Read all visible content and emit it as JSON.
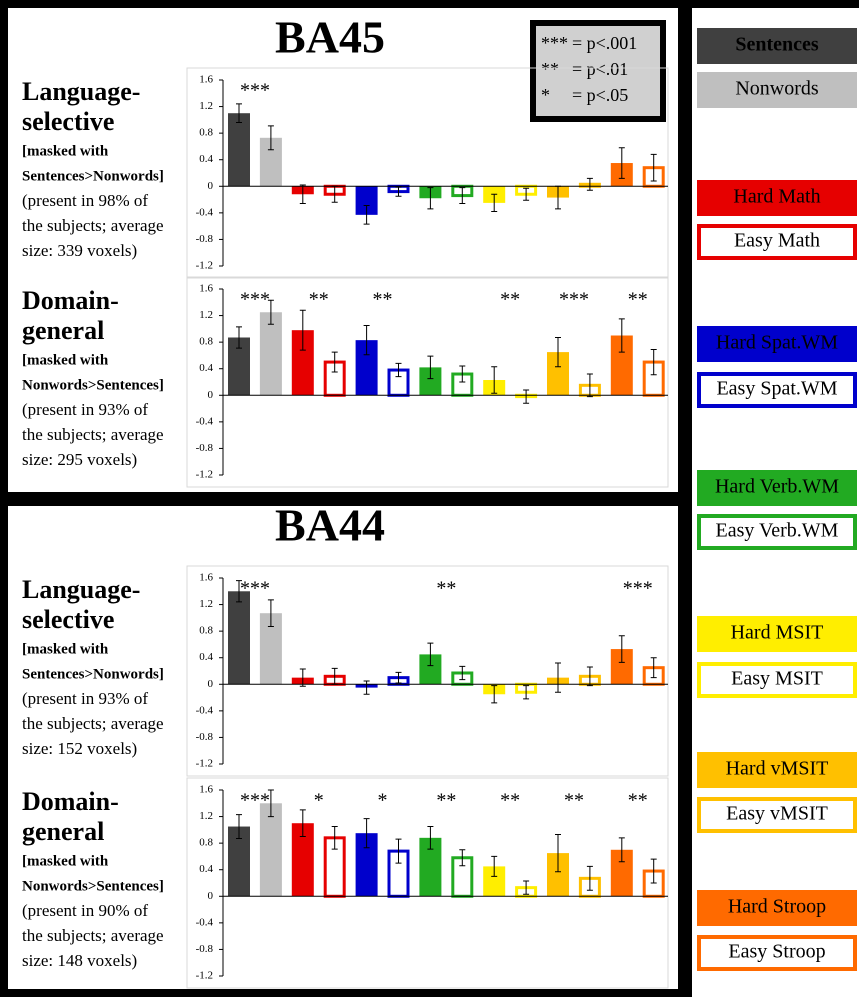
{
  "sections": [
    {
      "title": "BA45"
    },
    {
      "title": "BA44"
    }
  ],
  "key": [
    {
      "symbol": "***",
      "label": "= p<.001"
    },
    {
      "symbol": "**",
      "label": "= p<.01"
    },
    {
      "symbol": "*",
      "label": "= p<.05"
    }
  ],
  "legend": [
    {
      "name": "Sentences",
      "color": "#404040",
      "filled": true
    },
    {
      "name": "Nonwords",
      "color": "#bfbfbf",
      "filled": true
    },
    {
      "name": "Hard Math",
      "color": "#e60000",
      "filled": true
    },
    {
      "name": "Easy Math",
      "color": "#e60000",
      "filled": false
    },
    {
      "name": "Hard Spat.WM",
      "color": "#0000cc",
      "filled": true
    },
    {
      "name": "Easy Spat.WM",
      "color": "#0000cc",
      "filled": false
    },
    {
      "name": "Hard Verb.WM",
      "color": "#22aa22",
      "filled": true
    },
    {
      "name": "Easy Verb.WM",
      "color": "#22aa22",
      "filled": false
    },
    {
      "name": "Hard MSIT",
      "color": "#ffee00",
      "filled": true
    },
    {
      "name": "Easy MSIT",
      "color": "#ffee00",
      "filled": false
    },
    {
      "name": "Hard vMSIT",
      "color": "#ffc000",
      "filled": true
    },
    {
      "name": "Easy vMSIT",
      "color": "#ffc000",
      "filled": false
    },
    {
      "name": "Hard Stroop",
      "color": "#ff6a00",
      "filled": true
    },
    {
      "name": "Easy Stroop",
      "color": "#ff6a00",
      "filled": false
    }
  ],
  "chart_data": [
    {
      "type": "bar",
      "title": [
        "Language-",
        "selective"
      ],
      "subtitle": [
        "[masked with",
        "Sentences>Nonwords]"
      ],
      "note": [
        "(present in 98% of",
        "the subjects; average",
        "size: 339 voxels)"
      ],
      "values": [
        1.1,
        0.73,
        -0.12,
        -0.12,
        -0.43,
        -0.08,
        -0.18,
        -0.14,
        -0.25,
        -0.12,
        -0.17,
        0.03,
        0.35,
        0.28
      ],
      "errors": [
        0.14,
        0.18,
        0.14,
        0.12,
        0.14,
        0.07,
        0.16,
        0.12,
        0.13,
        0.09,
        0.17,
        0.09,
        0.23,
        0.2
      ],
      "significance": [
        "***",
        null,
        null,
        null,
        null,
        null,
        null
      ],
      "ylim": [
        -1.2,
        1.6
      ],
      "yticks": [
        -1.2,
        -0.8,
        -0.4,
        0,
        0.4,
        0.8,
        1.2,
        1.6
      ]
    },
    {
      "type": "bar",
      "title": [
        "Domain-",
        "general"
      ],
      "subtitle": [
        "[masked with",
        "Nonwords>Sentences]"
      ],
      "note": [
        "(present in 93% of",
        "the subjects; average",
        "size: 295 voxels)"
      ],
      "values": [
        0.87,
        1.25,
        0.98,
        0.5,
        0.83,
        0.38,
        0.42,
        0.32,
        0.23,
        -0.02,
        0.65,
        0.15,
        0.9,
        0.5
      ],
      "errors": [
        0.16,
        0.18,
        0.3,
        0.15,
        0.22,
        0.1,
        0.17,
        0.12,
        0.2,
        0.1,
        0.22,
        0.17,
        0.25,
        0.19
      ],
      "significance": [
        "***",
        "**",
        "**",
        null,
        "**",
        "***",
        "**"
      ],
      "ylim": [
        -1.2,
        1.6
      ],
      "yticks": [
        -1.2,
        -0.8,
        -0.4,
        0,
        0.4,
        0.8,
        1.2,
        1.6
      ]
    },
    {
      "type": "bar",
      "title": [
        "Language-",
        "selective"
      ],
      "subtitle": [
        "[masked with",
        "Sentences>Nonwords]"
      ],
      "note": [
        "(present in 93% of",
        "the subjects; average",
        "size: 152 voxels)"
      ],
      "values": [
        1.4,
        1.07,
        0.1,
        0.12,
        -0.05,
        0.1,
        0.45,
        0.17,
        -0.15,
        -0.12,
        0.1,
        0.12,
        0.53,
        0.25
      ],
      "errors": [
        0.16,
        0.2,
        0.13,
        0.12,
        0.1,
        0.08,
        0.17,
        0.1,
        0.13,
        0.1,
        0.22,
        0.14,
        0.2,
        0.15
      ],
      "significance": [
        "***",
        null,
        null,
        "**",
        null,
        null,
        "***"
      ],
      "ylim": [
        -1.2,
        1.6
      ],
      "yticks": [
        -1.2,
        -0.8,
        -0.4,
        0,
        0.4,
        0.8,
        1.2,
        1.6
      ]
    },
    {
      "type": "bar",
      "title": [
        "Domain-",
        "general"
      ],
      "subtitle": [
        "[masked with",
        "Nonwords>Sentences]"
      ],
      "note": [
        "(present in 90% of",
        "the subjects; average",
        "size: 148 voxels)"
      ],
      "values": [
        1.05,
        1.4,
        1.1,
        0.88,
        0.95,
        0.68,
        0.88,
        0.58,
        0.45,
        0.13,
        0.65,
        0.27,
        0.7,
        0.38
      ],
      "errors": [
        0.18,
        0.2,
        0.2,
        0.17,
        0.22,
        0.18,
        0.17,
        0.12,
        0.15,
        0.1,
        0.28,
        0.18,
        0.18,
        0.18
      ],
      "significance": [
        "***",
        "*",
        "*",
        "**",
        "**",
        "**",
        "**"
      ],
      "ylim": [
        -1.2,
        1.6
      ],
      "yticks": [
        -1.2,
        -0.8,
        -0.4,
        0,
        0.4,
        0.8,
        1.2,
        1.6
      ]
    }
  ]
}
